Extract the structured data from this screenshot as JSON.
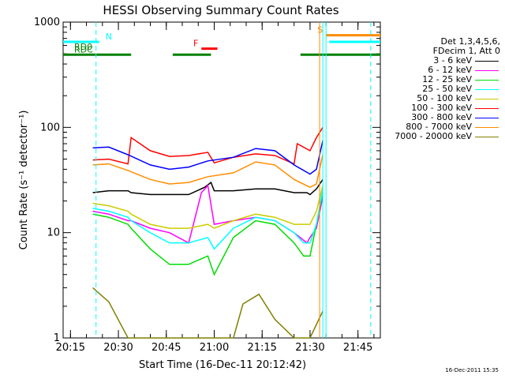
{
  "chart_data": {
    "type": "line",
    "title": "HESSI Observing Summary Count Rates",
    "xlabel": "Start Time (16-Dec-11 20:12:42)",
    "ylabel": "Count Rate (s⁻¹ detector⁻¹)",
    "y_scale": "log",
    "ylim": [
      1,
      1000
    ],
    "xlim": [
      "20:12:42",
      "21:52:00"
    ],
    "x_ticks": [
      "20:15",
      "20:30",
      "20:45",
      "21:00",
      "21:15",
      "21:30",
      "21:45"
    ],
    "y_ticks": [
      "1",
      "10",
      "100",
      "1000"
    ],
    "legend_header": [
      "Det 1,3,4,5,6,",
      "FDecim 1, Att 0"
    ],
    "series": [
      {
        "name": "3 - 6 keV",
        "color": "#000000",
        "x": [
          "20:22",
          "20:27",
          "20:33",
          "20:34",
          "20:40",
          "20:46",
          "20:52",
          "20:57",
          "20:59",
          "21:00",
          "21:06",
          "21:13",
          "21:19",
          "21:25",
          "21:29",
          "21:30",
          "21:32",
          "21:34"
        ],
        "y": [
          24,
          25,
          25,
          24,
          23,
          23,
          23,
          27,
          30,
          25,
          25,
          26,
          26,
          24,
          24,
          23,
          26,
          32
        ]
      },
      {
        "name": "6 - 12 keV",
        "color": "#ff00ff",
        "x": [
          "20:22",
          "20:27",
          "20:33",
          "20:34",
          "20:40",
          "20:46",
          "20:52",
          "20:56",
          "20:58",
          "21:00",
          "21:06",
          "21:13",
          "21:19",
          "21:25",
          "21:29",
          "21:30",
          "21:32",
          "21:34"
        ],
        "y": [
          16,
          15,
          13,
          13,
          11,
          10,
          8,
          24,
          28,
          12,
          13,
          14,
          13,
          10,
          8,
          9,
          11,
          22
        ]
      },
      {
        "name": "12 - 25 keV",
        "color": "#00dd00",
        "x": [
          "20:22",
          "20:27",
          "20:33",
          "20:34",
          "20:40",
          "20:46",
          "20:52",
          "20:58",
          "21:00",
          "21:06",
          "21:13",
          "21:19",
          "21:25",
          "21:28",
          "21:30",
          "21:32",
          "21:34"
        ],
        "y": [
          15,
          14,
          12,
          11,
          7,
          5,
          5,
          6,
          4,
          9,
          13,
          12,
          8,
          6,
          6,
          12,
          24
        ]
      },
      {
        "name": "25 - 50 keV",
        "color": "#00ffff",
        "x": [
          "20:22",
          "20:27",
          "20:33",
          "20:34",
          "20:40",
          "20:46",
          "20:52",
          "20:58",
          "21:00",
          "21:06",
          "21:13",
          "21:19",
          "21:25",
          "21:28",
          "21:30",
          "21:32",
          "21:34"
        ],
        "y": [
          17,
          16,
          14,
          13,
          10,
          8,
          8,
          9,
          7,
          11,
          14,
          13,
          10,
          8,
          8,
          12,
          26
        ]
      },
      {
        "name": "50 - 100 keV",
        "color": "#cccc00",
        "x": [
          "20:22",
          "20:27",
          "20:33",
          "20:34",
          "20:40",
          "20:46",
          "20:52",
          "20:58",
          "21:00",
          "21:06",
          "21:13",
          "21:19",
          "21:25",
          "21:30",
          "21:32",
          "21:34"
        ],
        "y": [
          19,
          18,
          16,
          15,
          12,
          11,
          11,
          12,
          11,
          13,
          15,
          14,
          12,
          12,
          16,
          28
        ]
      },
      {
        "name": "100 - 300 keV",
        "color": "#ff0000",
        "x": [
          "20:22",
          "20:27",
          "20:33",
          "20:34",
          "20:40",
          "20:46",
          "20:52",
          "20:58",
          "21:00",
          "21:06",
          "21:13",
          "21:19",
          "21:25",
          "21:26",
          "21:30",
          "21:32",
          "21:34"
        ],
        "y": [
          49,
          50,
          45,
          80,
          60,
          53,
          54,
          58,
          46,
          52,
          56,
          54,
          45,
          70,
          60,
          80,
          100
        ]
      },
      {
        "name": "300 - 800 keV",
        "color": "#0000ff",
        "x": [
          "20:22",
          "20:27",
          "20:33",
          "20:40",
          "20:46",
          "20:52",
          "20:58",
          "21:06",
          "21:13",
          "21:19",
          "21:25",
          "21:30",
          "21:32",
          "21:34"
        ],
        "y": [
          64,
          65,
          55,
          44,
          40,
          42,
          48,
          52,
          63,
          60,
          44,
          36,
          40,
          75
        ]
      },
      {
        "name": "800 - 7000 keV",
        "color": "#ff8c00",
        "x": [
          "20:22",
          "20:27",
          "20:33",
          "20:40",
          "20:46",
          "20:52",
          "20:58",
          "21:06",
          "21:13",
          "21:19",
          "21:25",
          "21:30",
          "21:32",
          "21:34"
        ],
        "y": [
          44,
          45,
          39,
          32,
          29,
          30,
          34,
          37,
          47,
          44,
          32,
          27,
          29,
          55
        ]
      },
      {
        "name": "7000 - 20000 keV",
        "color": "#808000",
        "x": [
          "20:22",
          "20:27",
          "20:33",
          "20:40",
          "20:46",
          "20:52",
          "20:58",
          "21:06",
          "21:09",
          "21:14",
          "21:19",
          "21:25",
          "21:30",
          "21:34"
        ],
        "y": [
          3,
          2.2,
          1,
          1,
          1,
          1,
          1,
          1,
          2.1,
          2.6,
          1.5,
          1,
          1,
          1.8
        ]
      }
    ],
    "flags": [
      {
        "label": "N",
        "color": "#00ffff",
        "level": 650,
        "segments": [
          [
            "20:12:42",
            "20:24"
          ],
          [
            "21:36",
            "21:52"
          ]
        ]
      },
      {
        "label": "RD0",
        "color": "#008000",
        "level": 520,
        "segments": []
      },
      {
        "label": "RDC",
        "color": "#008000",
        "level": 490,
        "segments": [
          [
            "20:12:42",
            "20:34"
          ],
          [
            "20:47",
            "20:59"
          ],
          [
            "21:27",
            "21:52"
          ]
        ]
      },
      {
        "label": "F",
        "color": "#ff0000",
        "level": 560,
        "segments": [
          [
            "20:56",
            "21:01"
          ]
        ]
      },
      {
        "label": "S",
        "color": "#ff8c00",
        "level": 750,
        "segments": [
          [
            "21:35",
            "21:52"
          ]
        ]
      }
    ],
    "vlines": [
      {
        "time": "20:23",
        "color": "#00ffff",
        "style": "dashed"
      },
      {
        "time": "21:33",
        "color": "#ff8c00",
        "style": "solid"
      },
      {
        "time": "21:34",
        "color": "#00ffff",
        "style": "solid"
      },
      {
        "time": "21:35",
        "color": "#00ffff",
        "style": "solid"
      },
      {
        "time": "21:49",
        "color": "#00ffff",
        "style": "dashed"
      }
    ],
    "grid": false,
    "legend_position": "right"
  },
  "footer_stamp": "16-Dec-2011 15:35"
}
